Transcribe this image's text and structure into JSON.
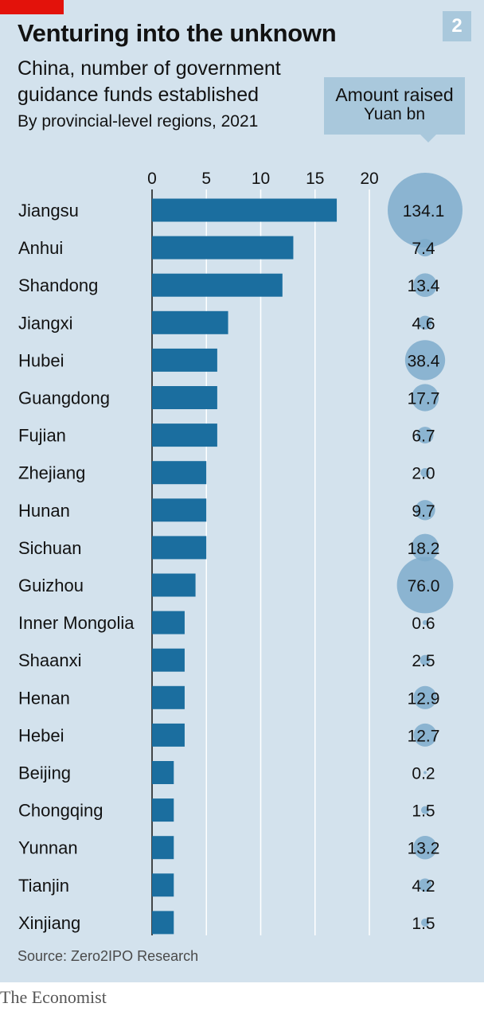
{
  "chart_number": "2",
  "source": "Source: Zero2IPO Research",
  "brand": "The Economist",
  "colors": {
    "bar": "#1b6e9f",
    "bubble": "#7eabcb",
    "panel": "#d3e2ed",
    "accent": "#e3120b"
  },
  "chart_data": {
    "type": "bar",
    "orientation": "horizontal",
    "title": "Venturing into the unknown",
    "subtitle": "China, number of government guidance funds established",
    "subtitle2": "By provincial-level regions, 2021",
    "xlim": [
      0,
      20
    ],
    "x_ticks": [
      "0",
      "5",
      "10",
      "15",
      "20"
    ],
    "grid": true,
    "categories": [
      "Jiangsu",
      "Anhui",
      "Shandong",
      "Jiangxi",
      "Hubei",
      "Guangdong",
      "Fujian",
      "Zhejiang",
      "Hunan",
      "Sichuan",
      "Guizhou",
      "Inner Mongolia",
      "Shaanxi",
      "Henan",
      "Hebei",
      "Beijing",
      "Chongqing",
      "Yunnan",
      "Tianjin",
      "Xinjiang"
    ],
    "values": [
      17,
      13,
      12,
      7,
      6,
      6,
      6,
      5,
      5,
      5,
      4,
      3,
      3,
      3,
      3,
      2,
      2,
      2,
      2,
      2
    ],
    "amount_label": "Amount raised",
    "amount_unit": "Yuan bn",
    "amounts": [
      134.1,
      7.4,
      13.4,
      4.6,
      38.4,
      17.7,
      6.7,
      2.0,
      9.7,
      18.2,
      76.0,
      0.6,
      2.5,
      12.9,
      12.7,
      0.2,
      1.5,
      13.2,
      4.2,
      1.5
    ],
    "amount_labels": [
      "134.1",
      "7.4",
      "13.4",
      "4.6",
      "38.4",
      "17.7",
      "6.7",
      "2.0",
      "9.7",
      "18.2",
      "76.0",
      "0.6",
      "2.5",
      "12.9",
      "12.7",
      "0.2",
      "1.5",
      "13.2",
      "4.2",
      "1.5"
    ]
  }
}
